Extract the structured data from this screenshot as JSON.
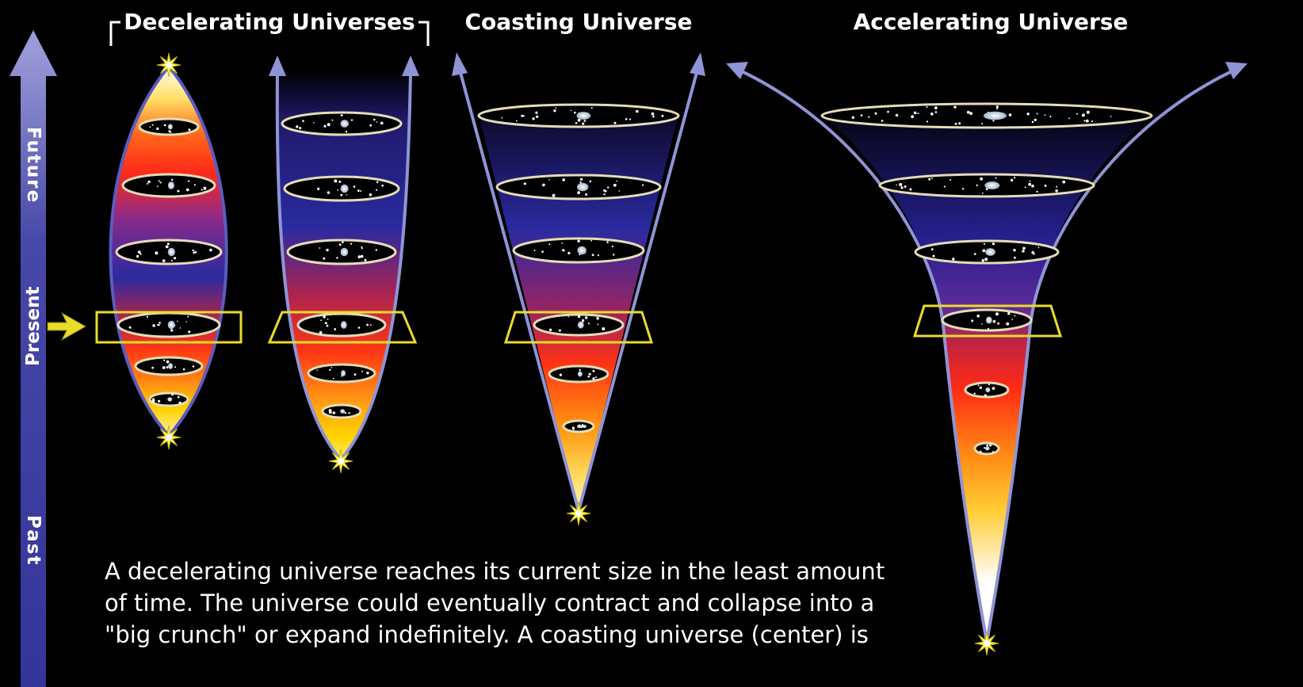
{
  "titles": {
    "decelerating": "Decelerating Universes",
    "coasting": "Coasting Universe",
    "accelerating": "Accelerating Universe"
  },
  "time_axis": {
    "future": "Future",
    "present": "Present",
    "past": "Past"
  },
  "caption": [
    "A decelerating universe reaches its current size in the least amount",
    "of time. The universe could eventually contract and collapse into a",
    "\"big crunch\" or expand indefinitely. A coasting universe (center) is"
  ],
  "colors": {
    "background": "#000000",
    "outline": "#8f94d6",
    "present_marker": "#e8dd2a",
    "star": "#fff36a",
    "ring": "#d9d3b0",
    "gradient": [
      "#10082c",
      "#27228a",
      "#b6244d",
      "#ff3a1f",
      "#ff8a14",
      "#ffd600",
      "#ffffff"
    ]
  }
}
